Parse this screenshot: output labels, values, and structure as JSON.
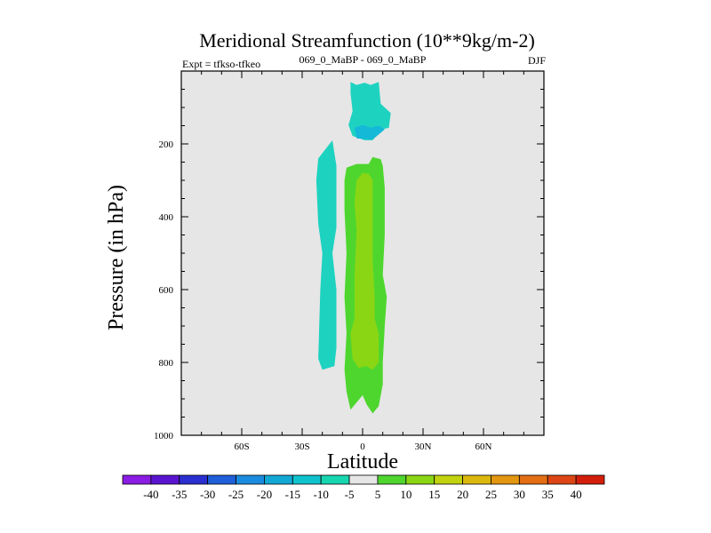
{
  "chart_data": {
    "type": "contour",
    "title": "Meridional Streamfunction (10**9kg/m-2)",
    "left_string": "Expt = tfkso-tfkeo",
    "center_string": "069_0_MaBP - 069_0_MaBP",
    "right_string": "DJF",
    "xlabel": "Latitude",
    "ylabel": "Pressure (in hPa)",
    "xlim": [
      -90,
      90
    ],
    "ylim": [
      1000,
      0
    ],
    "x_ticks": [
      {
        "value": -60,
        "label": "60S"
      },
      {
        "value": -30,
        "label": "30S"
      },
      {
        "value": 0,
        "label": "0"
      },
      {
        "value": 30,
        "label": "30N"
      },
      {
        "value": 60,
        "label": "60N"
      }
    ],
    "y_ticks": [
      {
        "value": 200,
        "label": "200"
      },
      {
        "value": 400,
        "label": "400"
      },
      {
        "value": 600,
        "label": "600"
      },
      {
        "value": 800,
        "label": "800"
      },
      {
        "value": 1000,
        "label": "1000"
      }
    ],
    "background_color": "#e6e6e6",
    "contour_levels": [
      -40,
      -35,
      -30,
      -25,
      -20,
      -15,
      -10,
      -5,
      5,
      10,
      15,
      20,
      25,
      30,
      35,
      40
    ],
    "colorbar_labels": [
      "-40",
      "-35",
      "-30",
      "-25",
      "-20",
      "-15",
      "-10",
      "-5",
      "5",
      "10",
      "15",
      "20",
      "25",
      "30",
      "35",
      "40"
    ],
    "colorbar_colors": [
      "#8a1ce3",
      "#5a14d0",
      "#2b2fcf",
      "#1f5fd9",
      "#1a8ce0",
      "#12a8d6",
      "#0fc2cc",
      "#16d6b0",
      "#e6e6e6",
      "#4ed62e",
      "#8ad614",
      "#c2d20f",
      "#dcb80f",
      "#e3960f",
      "#e36e14",
      "#dd4614",
      "#d31e0c"
    ],
    "regions": [
      {
        "name": "negative-cell-upper",
        "value_range": [
          -10,
          -5
        ],
        "color": "#1ed2c0",
        "points": [
          [
            -6,
            30
          ],
          [
            -3,
            38
          ],
          [
            1,
            32
          ],
          [
            4,
            38
          ],
          [
            8,
            30
          ],
          [
            9,
            90
          ],
          [
            14,
            115
          ],
          [
            13,
            156
          ],
          [
            9,
            160
          ],
          [
            5,
            190
          ],
          [
            1,
            190
          ],
          [
            -5,
            178
          ],
          [
            -7,
            148
          ],
          [
            -5,
            110
          ],
          [
            -6,
            60
          ]
        ]
      },
      {
        "name": "negative-cell-upper-core",
        "value_range": [
          -15,
          -10
        ],
        "color": "#14b9d8",
        "points": [
          [
            -4,
            155
          ],
          [
            0,
            148
          ],
          [
            4,
            155
          ],
          [
            8,
            150
          ],
          [
            11,
            160
          ],
          [
            5,
            188
          ],
          [
            -3,
            185
          ]
        ]
      },
      {
        "name": "negative-cell-subtropical",
        "value_range": [
          -10,
          -5
        ],
        "color": "#1ed2c0",
        "points": [
          [
            -22,
            240
          ],
          [
            -15,
            190
          ],
          [
            -13,
            260
          ],
          [
            -13,
            430
          ],
          [
            -15,
            500
          ],
          [
            -13,
            600
          ],
          [
            -13,
            760
          ],
          [
            -14,
            810
          ],
          [
            -20,
            820
          ],
          [
            -22,
            790
          ],
          [
            -21,
            600
          ],
          [
            -20,
            500
          ],
          [
            -22,
            420
          ],
          [
            -23,
            300
          ]
        ]
      },
      {
        "name": "positive-cell",
        "value_range": [
          5,
          10
        ],
        "color": "#4ed62e",
        "points": [
          [
            -8,
            265
          ],
          [
            -3,
            255
          ],
          [
            3,
            255
          ],
          [
            5,
            236
          ],
          [
            9,
            242
          ],
          [
            10,
            260
          ],
          [
            11,
            320
          ],
          [
            11,
            450
          ],
          [
            10,
            560
          ],
          [
            12,
            620
          ],
          [
            11,
            700
          ],
          [
            10,
            800
          ],
          [
            10,
            860
          ],
          [
            8,
            920
          ],
          [
            5,
            940
          ],
          [
            2,
            915
          ],
          [
            0,
            890
          ],
          [
            -3,
            910
          ],
          [
            -6,
            930
          ],
          [
            -8,
            880
          ],
          [
            -9,
            820
          ],
          [
            -8,
            720
          ],
          [
            -9,
            620
          ],
          [
            -8,
            500
          ],
          [
            -9,
            380
          ],
          [
            -9,
            300
          ]
        ]
      },
      {
        "name": "positive-cell-core",
        "value_range": [
          10,
          15
        ],
        "color": "#8ad614",
        "points": [
          [
            -3,
            300
          ],
          [
            0,
            280
          ],
          [
            3,
            282
          ],
          [
            5,
            300
          ],
          [
            5,
            400
          ],
          [
            5,
            520
          ],
          [
            6,
            620
          ],
          [
            6,
            680
          ],
          [
            8,
            720
          ],
          [
            8,
            800
          ],
          [
            5,
            820
          ],
          [
            2,
            810
          ],
          [
            -2,
            815
          ],
          [
            -5,
            790
          ],
          [
            -6,
            720
          ],
          [
            -4,
            680
          ],
          [
            -4,
            560
          ],
          [
            -3,
            440
          ],
          [
            -4,
            360
          ]
        ]
      }
    ]
  }
}
